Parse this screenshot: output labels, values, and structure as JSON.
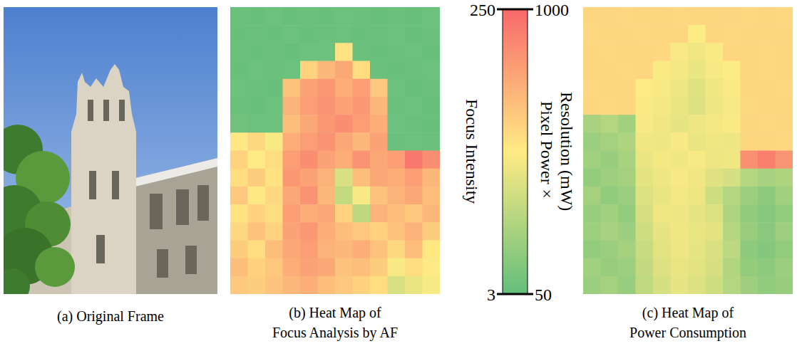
{
  "chart_data": [
    {
      "type": "image",
      "caption": [
        "(a) Original Frame"
      ]
    },
    {
      "type": "heatmap",
      "caption": [
        "(b) Heat Map of",
        "Focus Analysis by AF"
      ],
      "tick_labels": false,
      "colors": [
        "#63be7b",
        "#ffeb84",
        "#f8696b"
      ],
      "colorbar": {
        "label": [
          "Focus Intensity"
        ],
        "range": [
          3,
          250
        ],
        "ticks": [
          3,
          250
        ]
      },
      "cells": [
        [
          9,
          8,
          10,
          8,
          9,
          8,
          10,
          9,
          8,
          9,
          8,
          10
        ],
        [
          8,
          9,
          8,
          10,
          8,
          9,
          11,
          8,
          9,
          10,
          8,
          9
        ],
        [
          9,
          8,
          9,
          8,
          10,
          12,
          135,
          9,
          8,
          9,
          10,
          8
        ],
        [
          8,
          10,
          9,
          10,
          150,
          175,
          190,
          140,
          9,
          8,
          9,
          10
        ],
        [
          10,
          9,
          8,
          165,
          195,
          205,
          185,
          200,
          160,
          10,
          8,
          9
        ],
        [
          9,
          8,
          10,
          180,
          200,
          210,
          195,
          205,
          175,
          9,
          10,
          8
        ],
        [
          14,
          12,
          11,
          170,
          190,
          205,
          215,
          200,
          185,
          10,
          9,
          8
        ],
        [
          130,
          145,
          120,
          185,
          200,
          210,
          190,
          175,
          195,
          9,
          10,
          9
        ],
        [
          150,
          125,
          140,
          200,
          215,
          195,
          185,
          210,
          190,
          200,
          235,
          215
        ],
        [
          140,
          155,
          135,
          205,
          195,
          180,
          95,
          170,
          190,
          185,
          200,
          175
        ],
        [
          160,
          130,
          145,
          190,
          210,
          175,
          80,
          120,
          165,
          180,
          190,
          170
        ],
        [
          135,
          150,
          140,
          200,
          185,
          190,
          150,
          75,
          180,
          170,
          160,
          175
        ],
        [
          145,
          165,
          150,
          195,
          205,
          185,
          170,
          160,
          150,
          165,
          180,
          155
        ],
        [
          155,
          140,
          170,
          190,
          200,
          180,
          175,
          185,
          165,
          145,
          170,
          130
        ],
        [
          170,
          150,
          160,
          185,
          195,
          190,
          165,
          170,
          155,
          120,
          140,
          125
        ],
        [
          160,
          155,
          165,
          175,
          185,
          170,
          160,
          150,
          140,
          95,
          110,
          120
        ]
      ]
    },
    {
      "type": "heatmap",
      "caption": [
        "(c) Heat Map of",
        "Power Consumption"
      ],
      "tick_labels": false,
      "colors": [
        "#63be7b",
        "#ffeb84",
        "#f8696b"
      ],
      "colorbar": {
        "label": [
          "Pixel Power×",
          "Resolution (mW)"
        ],
        "range": [
          50,
          1000
        ],
        "ticks": [
          50,
          1000
        ]
      },
      "cells": [
        [
          600,
          605,
          598,
          602,
          600,
          597,
          603,
          600,
          604,
          598,
          601,
          599
        ],
        [
          598,
          600,
          603,
          599,
          601,
          600,
          520,
          602,
          598,
          600,
          603,
          600
        ],
        [
          600,
          598,
          601,
          600,
          597,
          505,
          480,
          510,
          600,
          601,
          598,
          602
        ],
        [
          601,
          600,
          598,
          600,
          510,
          490,
          460,
          500,
          520,
          600,
          599,
          600
        ],
        [
          599,
          602,
          600,
          520,
          500,
          470,
          430,
          480,
          510,
          600,
          602,
          598
        ],
        [
          600,
          599,
          601,
          510,
          490,
          460,
          420,
          470,
          500,
          599,
          600,
          601
        ],
        [
          260,
          300,
          240,
          500,
          480,
          450,
          470,
          490,
          510,
          600,
          598,
          600
        ],
        [
          220,
          250,
          280,
          480,
          470,
          500,
          460,
          480,
          470,
          601,
          600,
          599
        ],
        [
          240,
          210,
          260,
          460,
          490,
          480,
          500,
          470,
          480,
          860,
          920,
          840
        ],
        [
          200,
          230,
          250,
          440,
          470,
          500,
          480,
          430,
          400,
          300,
          260,
          280
        ],
        [
          250,
          190,
          220,
          420,
          460,
          490,
          470,
          380,
          300,
          220,
          180,
          240
        ],
        [
          210,
          240,
          200,
          400,
          480,
          470,
          450,
          420,
          280,
          190,
          160,
          200
        ],
        [
          230,
          260,
          220,
          380,
          450,
          480,
          460,
          440,
          300,
          210,
          170,
          230
        ],
        [
          200,
          220,
          250,
          360,
          440,
          470,
          450,
          410,
          320,
          180,
          150,
          200
        ],
        [
          240,
          210,
          230,
          340,
          420,
          460,
          440,
          400,
          290,
          200,
          180,
          220
        ],
        [
          220,
          250,
          210,
          330,
          400,
          450,
          420,
          380,
          300,
          230,
          190,
          210
        ]
      ]
    }
  ]
}
